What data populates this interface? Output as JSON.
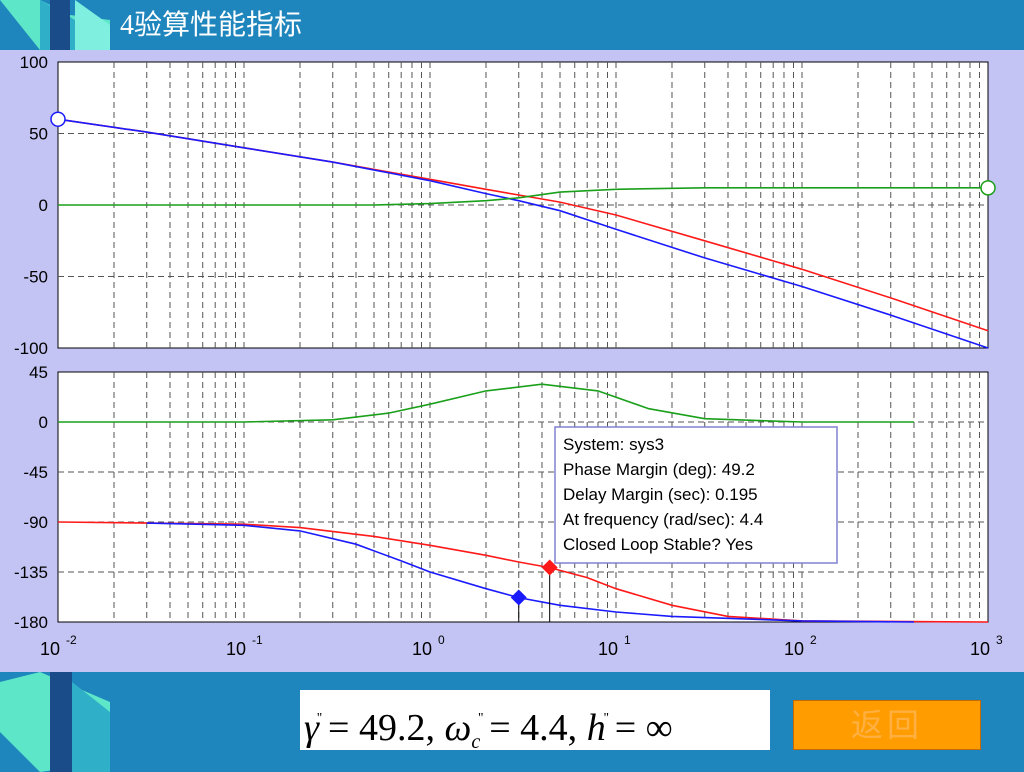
{
  "slide": {
    "title": "4验算性能指标",
    "back_label": "返回"
  },
  "formula": {
    "gamma_value": "= 49.2,",
    "wc_value": "= 4.4,",
    "h_value": "= ∞",
    "gamma_symbol": "γ",
    "omega_symbol": "ω",
    "omega_sub": "c",
    "h_symbol": "h",
    "prime": "''"
  },
  "tooltip": {
    "lines": [
      "System: sys3",
      "Phase Margin (deg): 49.2",
      "Delay Margin (sec): 0.195",
      "At frequency (rad/sec): 4.4",
      "Closed Loop Stable? Yes"
    ]
  },
  "colors": {
    "red": "#ff1a1a",
    "blue": "#1a1aff",
    "green": "#1aa01a",
    "grid": "#555555",
    "accent_orange": "#ff9c00"
  },
  "chart_data": [
    {
      "type": "line",
      "panel": "magnitude",
      "xscale": "log",
      "xlim": [
        0.01,
        1000
      ],
      "ylim": [
        -100,
        100
      ],
      "yticks": [
        100,
        50,
        0,
        -50,
        -100
      ],
      "series": [
        {
          "color": "red",
          "x": [
            0.01,
            0.03,
            0.1,
            0.3,
            1,
            2,
            3,
            5,
            10,
            30,
            100,
            300,
            1000
          ],
          "y": [
            60,
            51,
            40,
            30,
            18,
            11,
            7,
            2,
            -7,
            -25,
            -45,
            -65,
            -88
          ]
        },
        {
          "color": "blue",
          "x": [
            0.01,
            0.03,
            0.1,
            0.3,
            1,
            2,
            3,
            5,
            10,
            30,
            100,
            300,
            1000
          ],
          "y": [
            60,
            51,
            40,
            30,
            17,
            8,
            3,
            -4,
            -17,
            -37,
            -57,
            -77,
            -100
          ]
        },
        {
          "color": "green",
          "x": [
            0.01,
            0.1,
            0.5,
            1,
            2,
            3,
            5,
            10,
            30,
            100,
            1000
          ],
          "y": [
            0,
            0,
            0,
            1,
            3,
            5,
            9,
            11,
            12,
            12,
            12
          ]
        }
      ],
      "markers": [
        {
          "x": 0.01,
          "y": 60,
          "shape": "circle",
          "color": "blue"
        },
        {
          "x": 1000,
          "y": 12,
          "shape": "circle",
          "color": "green"
        }
      ]
    },
    {
      "type": "line",
      "panel": "phase",
      "xscale": "log",
      "xlim": [
        0.01,
        1000
      ],
      "ylim": [
        -180,
        45
      ],
      "yticks": [
        45,
        0,
        -45,
        -90,
        -135,
        -180
      ],
      "xticks": [
        "10",
        "10",
        "10",
        "10",
        "10",
        "10"
      ],
      "xtick_exponents": [
        "-2",
        "-1",
        "0",
        "1",
        "2",
        "3"
      ],
      "series": [
        {
          "color": "green",
          "x": [
            0.01,
            0.1,
            0.3,
            0.6,
            1,
            2,
            4,
            8,
            15,
            30,
            100,
            400
          ],
          "y": [
            0,
            0,
            2,
            8,
            16,
            28,
            34,
            28,
            12,
            3,
            0,
            0
          ]
        },
        {
          "color": "red",
          "x": [
            0.01,
            0.1,
            0.2,
            0.5,
            1,
            2,
            3,
            4.4,
            7,
            10,
            20,
            40,
            100,
            1000
          ],
          "y": [
            -90,
            -92,
            -95,
            -103,
            -111,
            -120,
            -126,
            -131,
            -140,
            -150,
            -165,
            -175,
            -179,
            -180
          ]
        },
        {
          "color": "blue",
          "x": [
            0.03,
            0.1,
            0.2,
            0.4,
            0.7,
            1,
            2,
            3,
            5,
            10,
            20,
            100,
            400
          ],
          "y": [
            -91,
            -93,
            -98,
            -110,
            -125,
            -135,
            -150,
            -158,
            -165,
            -171,
            -175,
            -179,
            -180
          ]
        }
      ],
      "markers": [
        {
          "x": 4.4,
          "y": -131,
          "shape": "diamond",
          "color": "red"
        },
        {
          "x": 3,
          "y": -158,
          "shape": "diamond",
          "color": "blue"
        }
      ]
    }
  ]
}
